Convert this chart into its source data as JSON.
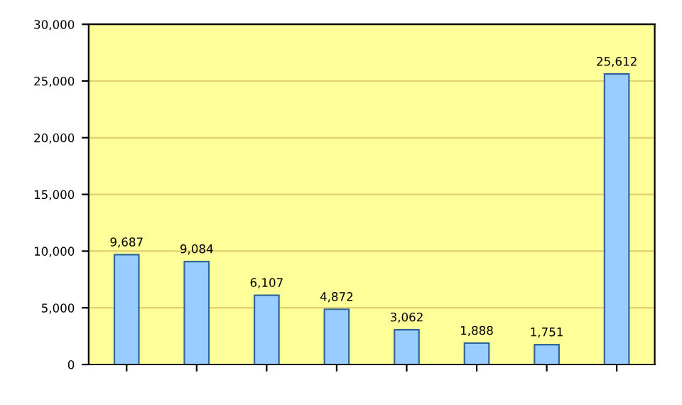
{
  "chart_data": {
    "type": "bar",
    "categories": [
      null,
      null,
      null,
      null,
      null,
      null,
      null,
      null
    ],
    "series": [
      {
        "color": "#99ccff",
        "values": [
          9687,
          9084,
          6107,
          4872,
          3062,
          1888,
          1751,
          25612
        ],
        "value_labels": [
          "9,687",
          "9,084",
          "6,107",
          "4,872",
          "3,062",
          "1,888",
          "1,751",
          "25,612"
        ]
      }
    ],
    "ylim": [
      0,
      30000
    ],
    "yticks": [
      {
        "value": 0,
        "label": "0"
      },
      {
        "value": 5000,
        "label": "5,000"
      },
      {
        "value": 10000,
        "label": "10,000"
      },
      {
        "value": 15000,
        "label": "15,000"
      },
      {
        "value": 20000,
        "label": "20,000"
      },
      {
        "value": 25000,
        "label": "25,000"
      },
      {
        "value": 30000,
        "label": "30,000"
      }
    ],
    "grid": "y"
  }
}
